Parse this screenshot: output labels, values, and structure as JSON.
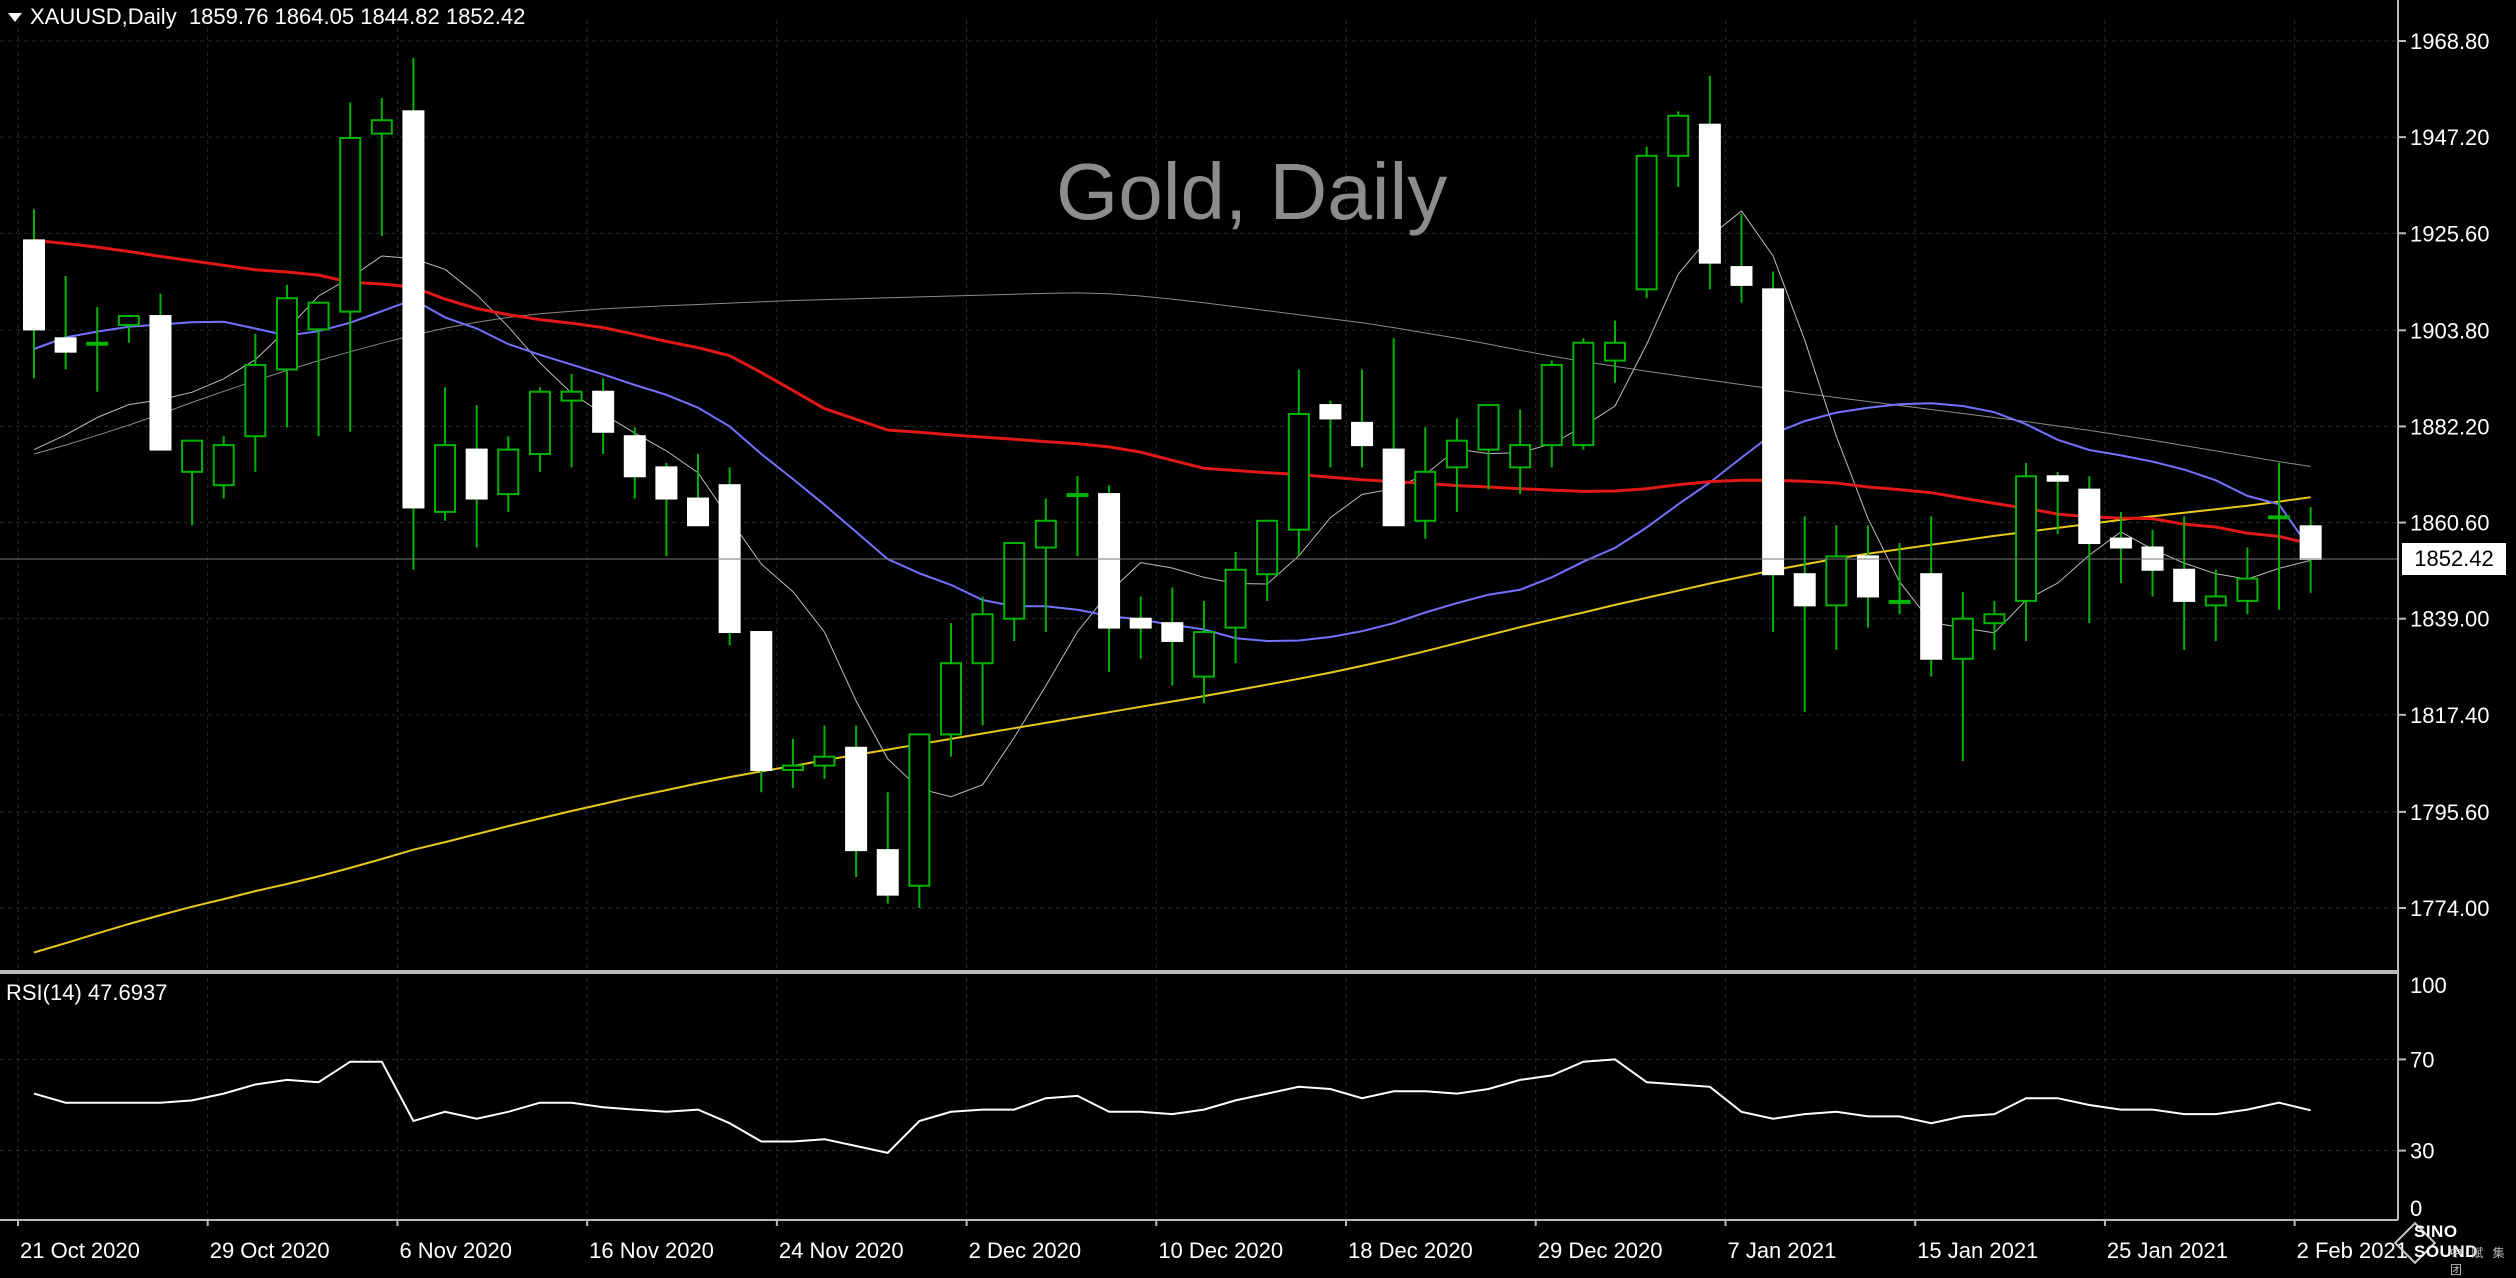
{
  "header": {
    "symbol": "XAUUSD,Daily",
    "ohlc": "1859.76 1864.05 1844.82 1852.42"
  },
  "watermark": "Gold, Daily",
  "current_price": "1852.42",
  "rsi": {
    "label": "RSI(14) 47.6937"
  },
  "logo": {
    "name": "SINO SOUND",
    "sub": "中 赋 集 团"
  },
  "colors": {
    "background": "#000000",
    "grid": "#2a2a2a",
    "candle_body": "#ffffff",
    "candle_wick": "#00b400",
    "ma_red": "#e01818",
    "ma_blue": "#7272ff",
    "ma_yellow": "#e8c81c",
    "ma_gray": "#bdbdbd",
    "rsi_line": "#ffffff"
  },
  "chart_data": [
    {
      "type": "candlestick",
      "symbol": "XAUUSD",
      "timeframe": "Daily",
      "ylim": [
        1764,
        1975
      ],
      "yticks": [
        1968.8,
        1947.2,
        1925.6,
        1903.8,
        1882.2,
        1860.6,
        1839.0,
        1817.4,
        1795.6,
        1774.0
      ],
      "ytick_labels": [
        "1968.80",
        "1947.20",
        "1925.60",
        "1903.80",
        "1882.20",
        "1860.60",
        "1839.00",
        "1817.40",
        "1795.60",
        "1774.00"
      ],
      "xtick_labels": [
        "21 Oct 2020",
        "29 Oct 2020",
        "6 Nov 2020",
        "16 Nov 2020",
        "24 Nov 2020",
        "2 Dec 2020",
        "10 Dec 2020",
        "18 Dec 2020",
        "29 Dec 2020",
        "7 Jan 2021",
        "15 Jan 2021",
        "25 Jan 2021",
        "2 Feb 2021"
      ],
      "xtick_index": [
        0,
        6,
        12,
        18,
        24,
        30,
        36,
        42,
        48,
        54,
        60,
        66,
        72
      ],
      "candles": [
        {
          "o": 1924,
          "h": 1931,
          "l": 1893,
          "c": 1904
        },
        {
          "o": 1902,
          "h": 1916,
          "l": 1895,
          "c": 1899
        },
        {
          "o": 1901,
          "h": 1909,
          "l": 1890,
          "c": 1901
        },
        {
          "o": 1905,
          "h": 1906,
          "l": 1901,
          "c": 1907
        },
        {
          "o": 1907,
          "h": 1912,
          "l": 1878,
          "c": 1877
        },
        {
          "o": 1872,
          "h": 1879,
          "l": 1860,
          "c": 1879
        },
        {
          "o": 1869,
          "h": 1880,
          "l": 1866,
          "c": 1878
        },
        {
          "o": 1880,
          "h": 1903,
          "l": 1872,
          "c": 1896
        },
        {
          "o": 1895,
          "h": 1914,
          "l": 1882,
          "c": 1911
        },
        {
          "o": 1904,
          "h": 1909,
          "l": 1880,
          "c": 1910
        },
        {
          "o": 1908,
          "h": 1955,
          "l": 1881,
          "c": 1947
        },
        {
          "o": 1948,
          "h": 1956,
          "l": 1925,
          "c": 1951
        },
        {
          "o": 1953,
          "h": 1965,
          "l": 1850,
          "c": 1864
        },
        {
          "o": 1863,
          "h": 1891,
          "l": 1861,
          "c": 1878
        },
        {
          "o": 1877,
          "h": 1887,
          "l": 1855,
          "c": 1866
        },
        {
          "o": 1867,
          "h": 1880,
          "l": 1863,
          "c": 1877
        },
        {
          "o": 1876,
          "h": 1891,
          "l": 1872,
          "c": 1890
        },
        {
          "o": 1888,
          "h": 1894,
          "l": 1873,
          "c": 1890
        },
        {
          "o": 1890,
          "h": 1893,
          "l": 1876,
          "c": 1881
        },
        {
          "o": 1880,
          "h": 1882,
          "l": 1866,
          "c": 1871
        },
        {
          "o": 1873,
          "h": 1874,
          "l": 1853,
          "c": 1866
        },
        {
          "o": 1866,
          "h": 1876,
          "l": 1861,
          "c": 1860
        },
        {
          "o": 1869,
          "h": 1873,
          "l": 1833,
          "c": 1836
        },
        {
          "o": 1836,
          "h": 1836,
          "l": 1800,
          "c": 1805
        },
        {
          "o": 1805,
          "h": 1812,
          "l": 1801,
          "c": 1806
        },
        {
          "o": 1806,
          "h": 1815,
          "l": 1803,
          "c": 1808
        },
        {
          "o": 1810,
          "h": 1815,
          "l": 1781,
          "c": 1787
        },
        {
          "o": 1787,
          "h": 1800,
          "l": 1775,
          "c": 1777
        },
        {
          "o": 1779,
          "h": 1813,
          "l": 1774,
          "c": 1813
        },
        {
          "o": 1813,
          "h": 1838,
          "l": 1808,
          "c": 1829
        },
        {
          "o": 1829,
          "h": 1844,
          "l": 1815,
          "c": 1840
        },
        {
          "o": 1839,
          "h": 1854,
          "l": 1834,
          "c": 1856
        },
        {
          "o": 1855,
          "h": 1866,
          "l": 1836,
          "c": 1861
        },
        {
          "o": 1867,
          "h": 1871,
          "l": 1853,
          "c": 1867
        },
        {
          "o": 1867,
          "h": 1869,
          "l": 1827,
          "c": 1837
        },
        {
          "o": 1839,
          "h": 1844,
          "l": 1830,
          "c": 1837
        },
        {
          "o": 1838,
          "h": 1846,
          "l": 1824,
          "c": 1834
        },
        {
          "o": 1826,
          "h": 1843,
          "l": 1820,
          "c": 1836
        },
        {
          "o": 1837,
          "h": 1854,
          "l": 1829,
          "c": 1850
        },
        {
          "o": 1849,
          "h": 1861,
          "l": 1843,
          "c": 1861
        },
        {
          "o": 1859,
          "h": 1895,
          "l": 1853,
          "c": 1885
        },
        {
          "o": 1887,
          "h": 1888,
          "l": 1873,
          "c": 1884
        },
        {
          "o": 1883,
          "h": 1895,
          "l": 1873,
          "c": 1878
        },
        {
          "o": 1877,
          "h": 1902,
          "l": 1860,
          "c": 1860
        },
        {
          "o": 1861,
          "h": 1882,
          "l": 1857,
          "c": 1872
        },
        {
          "o": 1873,
          "h": 1884,
          "l": 1863,
          "c": 1879
        },
        {
          "o": 1877,
          "h": 1885,
          "l": 1868,
          "c": 1887
        },
        {
          "o": 1873,
          "h": 1886,
          "l": 1867,
          "c": 1878
        },
        {
          "o": 1878,
          "h": 1897,
          "l": 1873,
          "c": 1896
        },
        {
          "o": 1878,
          "h": 1902,
          "l": 1877,
          "c": 1901
        },
        {
          "o": 1897,
          "h": 1906,
          "l": 1892,
          "c": 1901
        },
        {
          "o": 1913,
          "h": 1945,
          "l": 1911,
          "c": 1943
        },
        {
          "o": 1943,
          "h": 1953,
          "l": 1936,
          "c": 1952
        },
        {
          "o": 1950,
          "h": 1961,
          "l": 1913,
          "c": 1919
        },
        {
          "o": 1918,
          "h": 1930,
          "l": 1910,
          "c": 1914
        },
        {
          "o": 1913,
          "h": 1917,
          "l": 1836,
          "c": 1849
        },
        {
          "o": 1849,
          "h": 1862,
          "l": 1818,
          "c": 1842
        },
        {
          "o": 1842,
          "h": 1860,
          "l": 1832,
          "c": 1853
        },
        {
          "o": 1853,
          "h": 1860,
          "l": 1837,
          "c": 1844
        },
        {
          "o": 1843,
          "h": 1856,
          "l": 1840,
          "c": 1843
        },
        {
          "o": 1849,
          "h": 1862,
          "l": 1826,
          "c": 1830
        },
        {
          "o": 1830,
          "h": 1845,
          "l": 1807,
          "c": 1839
        },
        {
          "o": 1838,
          "h": 1843,
          "l": 1832,
          "c": 1840
        },
        {
          "o": 1843,
          "h": 1874,
          "l": 1834,
          "c": 1871
        },
        {
          "o": 1871,
          "h": 1872,
          "l": 1858,
          "c": 1870
        },
        {
          "o": 1868,
          "h": 1871,
          "l": 1838,
          "c": 1856
        },
        {
          "o": 1857,
          "h": 1863,
          "l": 1847,
          "c": 1855
        },
        {
          "o": 1855,
          "h": 1859,
          "l": 1844,
          "c": 1850
        },
        {
          "o": 1850,
          "h": 1862,
          "l": 1832,
          "c": 1843
        },
        {
          "o": 1842,
          "h": 1850,
          "l": 1834,
          "c": 1844
        },
        {
          "o": 1843,
          "h": 1855,
          "l": 1840,
          "c": 1848
        },
        {
          "o": 1862,
          "h": 1874,
          "l": 1841,
          "c": 1862
        },
        {
          "o": 1859.76,
          "h": 1864.05,
          "l": 1844.82,
          "c": 1852.42
        }
      ],
      "ma_red": [
        1924,
        1923.3,
        1922.5,
        1921.5,
        1920.4,
        1919.4,
        1918.4,
        1917.4,
        1916.9,
        1916.2,
        1914.6,
        1914.2,
        1913.5,
        1910.8,
        1908.7,
        1907.3,
        1906.2,
        1905.4,
        1904.4,
        1902.9,
        1901.3,
        1899.9,
        1898.1,
        1894.3,
        1890.3,
        1886.2,
        1883.8,
        1881.4,
        1880.9,
        1880.3,
        1879.8,
        1879.3,
        1878.8,
        1878.3,
        1877.6,
        1876.4,
        1874.6,
        1872.8,
        1872.3,
        1871.8,
        1871.4,
        1870.8,
        1870.2,
        1869.8,
        1869.4,
        1868.9,
        1868.6,
        1868.2,
        1867.9,
        1867.6,
        1867.7,
        1868.2,
        1869.1,
        1869.8,
        1870.1,
        1870.1,
        1869.9,
        1869.5,
        1868.6,
        1868.0,
        1867.3,
        1866.1,
        1864.9,
        1863.8,
        1862.5,
        1861.9,
        1861.6,
        1861.5,
        1860.2,
        1859.6,
        1858.2,
        1857.5,
        1855.8
      ],
      "ma_blue": [
        1899.6,
        1902.2,
        1903.5,
        1904.6,
        1905.1,
        1905.6,
        1905.7,
        1904.2,
        1902.6,
        1903.6,
        1905.5,
        1908.1,
        1910.7,
        1906.7,
        1904.2,
        1900.7,
        1898.3,
        1896.1,
        1893.9,
        1891.5,
        1889.3,
        1886.4,
        1882.2,
        1876.0,
        1870.4,
        1864.6,
        1858.5,
        1852.4,
        1849.2,
        1846.6,
        1843.2,
        1841.8,
        1841.8,
        1841.0,
        1839.6,
        1838.8,
        1837.6,
        1836.6,
        1834.6,
        1834.0,
        1834.1,
        1834.9,
        1836.2,
        1838.0,
        1840.4,
        1842.5,
        1844.4,
        1845.5,
        1848.3,
        1851.8,
        1854.9,
        1859.5,
        1864.7,
        1869.6,
        1875.2,
        1880.6,
        1883.4,
        1885.3,
        1886.4,
        1887.2,
        1887.4,
        1886.8,
        1885.4,
        1882.7,
        1879.2,
        1876.9,
        1875.7,
        1874.3,
        1872.5,
        1870.1,
        1866.6,
        1864.7,
        1854.5
      ],
      "ma_yellow": [
        1764.0,
        1766.1,
        1768.3,
        1770.4,
        1772.4,
        1774.3,
        1776.0,
        1777.8,
        1779.4,
        1781.1,
        1783.0,
        1785.0,
        1787.1,
        1788.8,
        1790.6,
        1792.4,
        1794.1,
        1795.8,
        1797.4,
        1799.0,
        1800.5,
        1802.0,
        1803.4,
        1804.7,
        1805.9,
        1807.2,
        1808.4,
        1809.6,
        1810.8,
        1812.0,
        1813.2,
        1814.4,
        1815.6,
        1816.8,
        1818.0,
        1819.2,
        1820.4,
        1821.6,
        1822.9,
        1824.2,
        1825.5,
        1826.9,
        1828.4,
        1830.0,
        1831.7,
        1833.5,
        1835.3,
        1837.1,
        1838.8,
        1840.4,
        1842.1,
        1843.7,
        1845.3,
        1846.9,
        1848.4,
        1849.9,
        1851.2,
        1852.5,
        1853.6,
        1854.6,
        1855.6,
        1856.6,
        1857.6,
        1858.5,
        1859.4,
        1860.3,
        1861.2,
        1862.0,
        1862.8,
        1863.6,
        1864.4,
        1865.3,
        1866.3
      ],
      "ma_gray": [
        1877.0,
        1880.3,
        1884.2,
        1887.1,
        1888.2,
        1889.9,
        1892.9,
        1897.2,
        1904.0,
        1911.5,
        1915.6,
        1920.5,
        1919.9,
        1917.5,
        1911.8,
        1904.6,
        1896.5,
        1889.7,
        1885.0,
        1880.7,
        1876.7,
        1871.8,
        1861.4,
        1851.3,
        1845.1,
        1836.0,
        1820.5,
        1807.5,
        1800.8,
        1799.0,
        1801.7,
        1812.3,
        1823.9,
        1836.1,
        1844.9,
        1851.6,
        1850.4,
        1848.3,
        1846.9,
        1846.8,
        1853.1,
        1861.7,
        1866.9,
        1868.2,
        1871.4,
        1877.1,
        1876.1,
        1876.3,
        1878.3,
        1882.2,
        1886.8,
        1900.6,
        1916.4,
        1924.9,
        1930.6,
        1920.5,
        1901.6,
        1880.0,
        1861.5,
        1847.3,
        1838.2,
        1836.9,
        1835.8,
        1843.2,
        1847.0,
        1853.3,
        1858.5,
        1854.6,
        1851.5,
        1849.1,
        1847.9,
        1850.3,
        1852.1
      ],
      "ma_gray_long": [
        1876.0,
        1878.0,
        1880.2,
        1882.5,
        1885.0,
        1887.6,
        1890.1,
        1892.5,
        1894.8,
        1897.0,
        1899.0,
        1900.9,
        1902.7,
        1904.3,
        1905.6,
        1906.7,
        1907.5,
        1908.1,
        1908.6,
        1909.0,
        1909.3,
        1909.6,
        1909.9,
        1910.2,
        1910.5,
        1910.7,
        1910.9,
        1911.1,
        1911.3,
        1911.5,
        1911.7,
        1911.9,
        1912.1,
        1912.2,
        1912.0,
        1911.5,
        1910.8,
        1910.0,
        1909.1,
        1908.2,
        1907.3,
        1906.4,
        1905.5,
        1904.4,
        1903.2,
        1902.0,
        1900.7,
        1899.3,
        1898.0,
        1896.8,
        1895.7,
        1894.6,
        1893.6,
        1892.6,
        1891.6,
        1890.6,
        1889.6,
        1888.7,
        1887.8,
        1886.9,
        1886.0,
        1885.1,
        1884.2,
        1883.3,
        1882.3,
        1881.3,
        1880.2,
        1879.1,
        1877.9,
        1876.7,
        1875.5,
        1874.3,
        1873.2
      ]
    },
    {
      "type": "line",
      "name": "RSI(14)",
      "last_value": 47.6937,
      "ylim": [
        0,
        100
      ],
      "yticks": [
        100,
        70,
        30,
        0
      ],
      "ytick_labels": [
        "100",
        "70",
        "30",
        "0"
      ],
      "values": [
        55,
        51,
        51,
        51,
        51,
        52,
        55,
        59,
        61,
        60,
        69,
        69,
        43,
        47,
        44,
        47,
        51,
        51,
        49,
        48,
        47,
        48,
        42,
        34,
        34,
        35,
        32,
        29,
        43,
        47,
        48,
        48,
        53,
        54,
        47,
        47,
        46,
        48,
        52,
        55,
        58,
        57,
        53,
        56,
        56,
        55,
        57,
        61,
        63,
        69,
        70,
        60,
        59,
        58,
        47,
        44,
        46,
        47,
        45,
        45,
        42,
        45,
        46,
        53,
        53,
        50,
        48,
        48,
        46,
        46,
        48,
        51,
        47.6937
      ]
    }
  ]
}
